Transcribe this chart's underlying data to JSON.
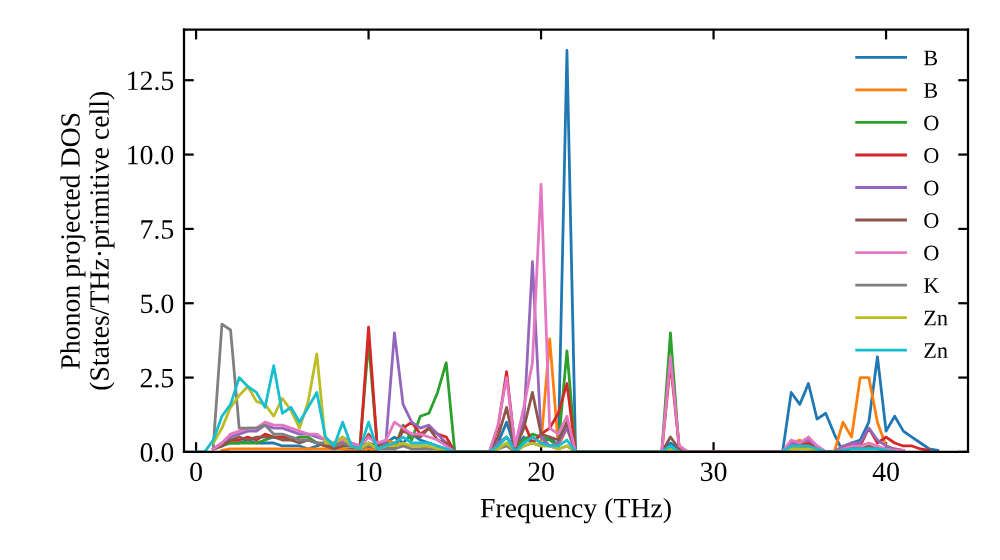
{
  "chart_data": {
    "type": "line",
    "xlabel": "Frequency (THz)",
    "ylabel": "Phonon projected DOS\n(States/THz·primitive cell)",
    "x": [
      0,
      0.5,
      1,
      1.5,
      2,
      2.5,
      3,
      3.5,
      4,
      4.5,
      5,
      5.5,
      6,
      6.5,
      7,
      7.5,
      8,
      8.5,
      9,
      9.5,
      10,
      10.5,
      11,
      11.5,
      12,
      12.5,
      13,
      13.5,
      14,
      14.5,
      15,
      17,
      17.5,
      18,
      18.5,
      19,
      19.5,
      20,
      20.5,
      21,
      21.5,
      22,
      27,
      27.5,
      28,
      28.5,
      34,
      34.5,
      35,
      35.5,
      36,
      36.5,
      37,
      37.5,
      38,
      38.5,
      39,
      39.5,
      40,
      40.5,
      41,
      41.5,
      42,
      42.5,
      43
    ],
    "xlim": [
      -0.7,
      44.75
    ],
    "xticks": [
      0,
      10,
      20,
      30,
      40
    ],
    "ylim": [
      0,
      14.2
    ],
    "yticks": [
      {
        "value": 0,
        "label": "0.0"
      },
      {
        "value": 2.5,
        "label": "2.5"
      },
      {
        "value": 5,
        "label": "5.0"
      },
      {
        "value": 7.5,
        "label": "7.5"
      },
      {
        "value": 10,
        "label": "10.0"
      },
      {
        "value": 12.5,
        "label": "12.5"
      }
    ],
    "legend": "top right",
    "grid": false,
    "line_style": "solid",
    "marker": "none",
    "series": [
      {
        "name": "B",
        "color": "#1f77b4",
        "values": [
          null,
          null,
          null,
          null,
          0.3,
          0.3,
          0.4,
          0.3,
          0.3,
          0.3,
          0.2,
          0.2,
          0.2,
          0.1,
          0.2,
          0.3,
          0.2,
          0.1,
          0.1,
          0.1,
          0.3,
          0.2,
          0.3,
          0.5,
          0.3,
          0.6,
          0.4,
          0.3,
          0.2,
          0.1,
          0,
          0,
          0.3,
          1,
          0.1,
          0.5,
          0.3,
          0.2,
          0.5,
          0.2,
          13.5,
          0,
          0,
          0.3,
          0.1,
          0,
          0,
          2.0,
          1.6,
          2.3,
          1.1,
          1.3,
          0.6,
          0,
          0.3,
          0.4,
          1.0,
          3.2,
          0.7,
          1.2,
          0.7,
          0.5,
          0.3,
          0.1,
          0.05
        ]
      },
      {
        "name": "B",
        "color": "#ff7f0e",
        "values": [
          null,
          null,
          null,
          0.05,
          0.1,
          0.1,
          0.1,
          0.1,
          0.1,
          0.1,
          0.1,
          0.1,
          0.1,
          0.1,
          0.1,
          0.1,
          0.1,
          0.1,
          0.05,
          0.05,
          0.1,
          0.05,
          0.4,
          0.3,
          0.2,
          0.2,
          0.2,
          0.1,
          0.1,
          0.05,
          0,
          0,
          0.2,
          0.5,
          0.1,
          0.4,
          0.5,
          0.3,
          3.8,
          0.2,
          0.8,
          0,
          0,
          0.1,
          0.05,
          0,
          0,
          0.3,
          0.4,
          0.2,
          0.1,
          0,
          0,
          1.0,
          0.5,
          2.5,
          2.5,
          1.0,
          0.2,
          0.1,
          0.05,
          null,
          null,
          null,
          null
        ]
      },
      {
        "name": "O",
        "color": "#2ca02c",
        "values": [
          null,
          null,
          0.1,
          0.2,
          0.3,
          0.3,
          0.3,
          0.3,
          0.4,
          0.5,
          0.5,
          0.4,
          0.5,
          0.5,
          0.3,
          0.2,
          0.2,
          0.4,
          0.3,
          0.2,
          3.7,
          0.2,
          0.3,
          0.1,
          0.9,
          0.4,
          1.2,
          1.3,
          2.0,
          3.0,
          0,
          0,
          0.2,
          0.5,
          0.1,
          0.4,
          0.6,
          0.5,
          0.4,
          0.2,
          3.4,
          0,
          0,
          4.0,
          0.1,
          0,
          0,
          0.2,
          0.3,
          0.2,
          0.1,
          0,
          null,
          null,
          null,
          null,
          null,
          null,
          null,
          null,
          null,
          null,
          null,
          null,
          null
        ]
      },
      {
        "name": "O",
        "color": "#d62728",
        "values": [
          null,
          null,
          0.1,
          0.2,
          0.4,
          0.4,
          0.5,
          0.4,
          0.6,
          0.5,
          0.5,
          0.5,
          0.4,
          0.4,
          0.3,
          0.2,
          0.2,
          0.3,
          0.2,
          0.1,
          4.2,
          0.2,
          0.2,
          0.1,
          0.8,
          1.0,
          0.6,
          0.8,
          0.6,
          0.5,
          0,
          0,
          0.8,
          2.7,
          0.1,
          1.0,
          0.3,
          0.6,
          0.8,
          1.3,
          2.3,
          0,
          0,
          3.0,
          0.2,
          0,
          0,
          0.2,
          0.2,
          0.3,
          0.1,
          0,
          0,
          0.1,
          0.3,
          0.2,
          0.8,
          0.3,
          0.5,
          0.3,
          0.2,
          0.2,
          0.1,
          0.05,
          null
        ]
      },
      {
        "name": "O",
        "color": "#9467bd",
        "values": [
          null,
          null,
          0.1,
          0.3,
          0.5,
          0.6,
          0.7,
          0.7,
          0.9,
          0.8,
          0.8,
          0.7,
          0.6,
          0.6,
          0.5,
          0.4,
          0.3,
          0.5,
          0.3,
          0.2,
          0.5,
          0.3,
          0.3,
          4.0,
          1.6,
          1.0,
          0.8,
          0.9,
          0.6,
          0.3,
          0,
          0,
          0.3,
          0.5,
          0.1,
          1.0,
          6.4,
          0.5,
          0.2,
          0.3,
          0.8,
          0,
          0,
          0.1,
          0.05,
          0,
          0,
          0.3,
          0.3,
          0.4,
          0.2,
          0,
          0,
          0.2,
          0.3,
          0.3,
          0.8,
          0.4,
          0.2,
          0.1,
          0.05,
          null,
          null,
          null,
          null
        ]
      },
      {
        "name": "O",
        "color": "#8c564b",
        "values": [
          null,
          null,
          0.1,
          0.2,
          0.4,
          0.5,
          0.4,
          0.5,
          0.5,
          0.5,
          0.4,
          0.4,
          0.3,
          0.4,
          0.3,
          0.2,
          0.1,
          0.2,
          0.2,
          0.1,
          0.6,
          0.2,
          0.2,
          0.2,
          0.7,
          0.6,
          0.5,
          0.8,
          0.4,
          0.3,
          0,
          0,
          0.5,
          1.5,
          0.1,
          0.8,
          2.0,
          0.6,
          0.5,
          0.4,
          1.0,
          0,
          0,
          0.5,
          0.1,
          0,
          0,
          0.1,
          0.1,
          0.2,
          0.1,
          0,
          0,
          0.1,
          0.2,
          0.1,
          0.2,
          0.1,
          0.1,
          0.05,
          0.05,
          null,
          null,
          null,
          null
        ]
      },
      {
        "name": "O",
        "color": "#e377c2",
        "values": [
          null,
          null,
          0.1,
          0.3,
          0.6,
          0.7,
          0.8,
          0.8,
          1.0,
          0.9,
          0.9,
          0.8,
          0.7,
          0.6,
          0.6,
          0.4,
          0.3,
          0.4,
          0.3,
          0.2,
          0.5,
          0.3,
          0.4,
          1.0,
          0.8,
          0.6,
          0.6,
          0.5,
          0.4,
          0.2,
          0,
          0,
          0.9,
          2.5,
          0.2,
          1.5,
          3.0,
          9.0,
          0.8,
          0.6,
          1.2,
          0,
          0,
          3.2,
          0.2,
          0,
          0,
          0.4,
          0.3,
          0.5,
          0.2,
          0,
          0,
          0.1,
          0.2,
          0.2,
          0.3,
          0.2,
          0.1,
          0.05,
          0.05,
          null,
          null,
          null,
          null
        ]
      },
      {
        "name": "K",
        "color": "#7f7f7f",
        "values": [
          null,
          null,
          0.2,
          4.3,
          4.1,
          0.8,
          0.8,
          0.8,
          0.9,
          0.6,
          0.6,
          0.5,
          0.4,
          0.4,
          0.3,
          0.3,
          0.2,
          0.3,
          0.2,
          0.1,
          0.2,
          0.1,
          0.1,
          0.1,
          0.2,
          0.1,
          0.1,
          0.1,
          0.1,
          0.05,
          0,
          0,
          0.1,
          0.2,
          0,
          0.2,
          0.3,
          0.2,
          0.2,
          0.1,
          0.2,
          0,
          0,
          0.1,
          0,
          0,
          0,
          0.1,
          0.1,
          0.1,
          0.05,
          0,
          0,
          0.05,
          0.1,
          0.1,
          0.1,
          0.1,
          0.05,
          null,
          null,
          null,
          null,
          null,
          null
        ]
      },
      {
        "name": "Zn",
        "color": "#bcbd22",
        "values": [
          null,
          null,
          0.3,
          0.8,
          1.5,
          1.9,
          2.2,
          1.7,
          1.6,
          1.2,
          1.8,
          1.4,
          0.8,
          1.7,
          3.3,
          0.3,
          0.3,
          0.5,
          0.2,
          0.1,
          0.3,
          0.1,
          0.2,
          0.2,
          0.3,
          0.2,
          0.2,
          0.2,
          0.1,
          0.05,
          0,
          0,
          0.1,
          0.3,
          0,
          0.2,
          0.3,
          0.2,
          0.2,
          0.1,
          0.2,
          0,
          0,
          0.1,
          0,
          null,
          0,
          0.1,
          0.1,
          0.1,
          0.05,
          0,
          null,
          null,
          null,
          null,
          null,
          null,
          null,
          null,
          null,
          null,
          null,
          null,
          null
        ]
      },
      {
        "name": "Zn",
        "color": "#17becf",
        "values": [
          0,
          0,
          0.4,
          1.2,
          1.6,
          2.5,
          2.2,
          2.0,
          1.5,
          2.9,
          1.3,
          1.5,
          1.0,
          1.5,
          2.0,
          0.5,
          0.2,
          1.0,
          0.2,
          0.1,
          1.0,
          0.1,
          0.2,
          0.3,
          0.5,
          0.3,
          0.3,
          0.3,
          0.2,
          0.1,
          0,
          0,
          0.2,
          0.5,
          0,
          0.3,
          0.5,
          0.3,
          0.2,
          0.2,
          0.4,
          0,
          0,
          0.2,
          0,
          null,
          0,
          0.2,
          0.2,
          0.2,
          0.1,
          0,
          0,
          0.05,
          0.1,
          0.1,
          0.1,
          0.1,
          0.05,
          0,
          null,
          null,
          null,
          null,
          null
        ]
      }
    ]
  }
}
